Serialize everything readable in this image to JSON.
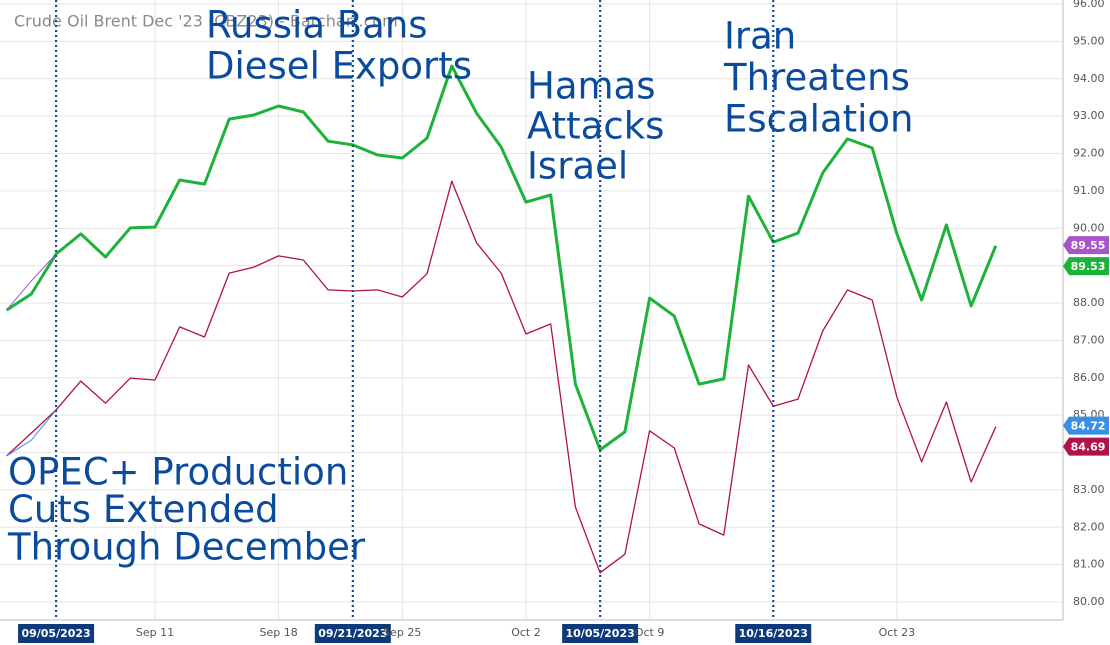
{
  "chart_data": {
    "type": "line",
    "title": "Crude Oil Brent Dec '23 (CBZ23) - Barchart.com",
    "categories": [
      null,
      null,
      "09/05/2023",
      null,
      null,
      null,
      "Sep 11",
      null,
      null,
      null,
      null,
      "Sep 18",
      null,
      null,
      "09/21/2023",
      null,
      "Sep 25",
      null,
      null,
      null,
      null,
      "Oct 2",
      null,
      null,
      "10/05/2023",
      null,
      "Oct 9",
      null,
      null,
      null,
      null,
      "10/16/2023",
      null,
      null,
      null,
      null,
      "Oct 23",
      null,
      null,
      null,
      null
    ],
    "series": [
      {
        "color": "#1db33a",
        "width": 3,
        "last": 89.53,
        "values": [
          87.81,
          88.24,
          89.31,
          89.85,
          89.23,
          90.01,
          90.03,
          91.29,
          91.18,
          92.92,
          93.03,
          93.27,
          93.11,
          92.33,
          92.23,
          91.96,
          91.88,
          92.41,
          94.34,
          93.08,
          92.17,
          90.7,
          90.89,
          85.83,
          84.07,
          84.55,
          88.13,
          87.65,
          85.83,
          85.97,
          90.86,
          89.63,
          89.87,
          91.48,
          92.39,
          92.15,
          89.85,
          88.08,
          90.09,
          87.92,
          89.53
        ]
      },
      {
        "color": "#b0124a",
        "width": 1.3,
        "last": 84.69,
        "values": [
          83.91,
          84.52,
          85.14,
          85.91,
          85.32,
          85.99,
          85.94,
          87.36,
          87.09,
          88.8,
          88.96,
          89.26,
          89.15,
          88.35,
          88.32,
          88.35,
          88.16,
          88.78,
          91.26,
          89.61,
          88.8,
          87.17,
          87.44,
          82.54,
          80.78,
          81.28,
          84.58,
          84.12,
          82.09,
          81.79,
          86.34,
          85.24,
          85.43,
          87.25,
          88.35,
          88.08,
          85.48,
          83.75,
          85.35,
          83.21,
          84.69
        ]
      },
      {
        "color": "#a855c8",
        "width": 1,
        "last": 89.55,
        "values": [
          87.81,
          88.59,
          89.31,
          null,
          null,
          null,
          null,
          null,
          null,
          null,
          null,
          null,
          null,
          null,
          null,
          null,
          null,
          null,
          null,
          null,
          null,
          null,
          null,
          null,
          null,
          null,
          null,
          null,
          null,
          null,
          null,
          null,
          null,
          null,
          null,
          null,
          null,
          null,
          null,
          null,
          null
        ]
      },
      {
        "color": "#3a8ee6",
        "width": 1,
        "last": 84.72,
        "values": [
          83.91,
          84.33,
          85.14,
          null,
          null,
          null,
          null,
          null,
          null,
          null,
          null,
          null,
          null,
          null,
          null,
          null,
          null,
          null,
          null,
          null,
          null,
          null,
          null,
          null,
          null,
          null,
          null,
          null,
          null,
          null,
          null,
          null,
          null,
          null,
          null,
          null,
          null,
          null,
          null,
          null,
          null
        ]
      }
    ],
    "annotations": [
      {
        "x": "09/05/2023",
        "lines": [
          "OPEC+ Production",
          "Cuts Extended",
          "Through December"
        ],
        "position": "bottom"
      },
      {
        "x": "09/21/2023",
        "lines": [
          "Russia Bans",
          "Diesel Exports"
        ],
        "position": "top"
      },
      {
        "x": "10/05/2023",
        "lines": [
          "Hamas",
          "Attacks",
          "Israel"
        ],
        "position": "top"
      },
      {
        "x": "10/16/2023",
        "lines": [
          "Iran",
          "Threatens",
          "Escalation"
        ],
        "position": "top"
      }
    ],
    "ylim": [
      80,
      96
    ],
    "yticks": [
      {
        "value": 80,
        "label": "80.00"
      },
      {
        "value": 81,
        "label": "81.00"
      },
      {
        "value": 82,
        "label": "82.00"
      },
      {
        "value": 83,
        "label": "83.00"
      },
      {
        "value": 84,
        "label": "84.00"
      },
      {
        "value": 85,
        "label": "85.00"
      },
      {
        "value": 86,
        "label": "86.00"
      },
      {
        "value": 87,
        "label": "87.00"
      },
      {
        "value": 88,
        "label": "88.00"
      },
      {
        "value": 89,
        "label": "89.00"
      },
      {
        "value": 90,
        "label": "90.00"
      },
      {
        "value": 91,
        "label": "91.00"
      },
      {
        "value": 92,
        "label": "92.00"
      },
      {
        "value": 93,
        "label": "93.00"
      },
      {
        "value": 94,
        "label": "94.00"
      },
      {
        "value": 95,
        "label": "95.00"
      },
      {
        "value": 96,
        "label": "96.00"
      }
    ],
    "grid": true,
    "annotation_color": "#0b4b9c"
  }
}
